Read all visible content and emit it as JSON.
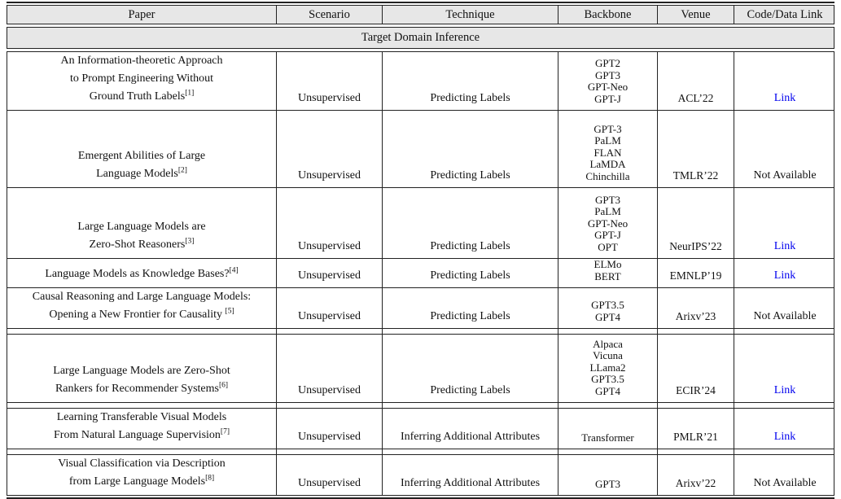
{
  "table": {
    "columns": [
      "Paper",
      "Scenario",
      "Technique",
      "Backbone",
      "Venue",
      "Code/Data Link"
    ],
    "section_title": "Target Domain Inference",
    "rows": [
      {
        "paper_lines": [
          "An Information-theoretic Approach",
          "to Prompt Engineering Without",
          "Ground Truth Labels"
        ],
        "paper_ref": "[1]",
        "scenario": "Unsupervised",
        "technique": "Predicting Labels",
        "backbone_lines": [
          "GPT2",
          "GPT3",
          "GPT-Neo",
          "GPT-J"
        ],
        "venue": "ACL’22",
        "code": "Link"
      },
      {
        "paper_lines": [
          "Emergent Abilities of Large",
          "Language Models"
        ],
        "paper_ref": "[2]",
        "scenario": "Unsupervised",
        "technique": "Predicting Labels",
        "backbone_lines": [
          "GPT-3",
          "PaLM",
          "FLAN",
          "LaMDA",
          "Chinchilla"
        ],
        "venue": "TMLR’22",
        "code": "Not Available"
      },
      {
        "paper_lines": [
          "Large Language Models are",
          "Zero-Shot Reasoners"
        ],
        "paper_ref": "[3]",
        "scenario": "Unsupervised",
        "technique": "Predicting Labels",
        "backbone_lines": [
          "GPT3",
          "PaLM",
          "GPT-Neo",
          "GPT-J",
          "OPT"
        ],
        "venue": "NeurIPS’22",
        "code": "Link"
      },
      {
        "paper_lines": [
          "Language Models as Knowledge Bases?"
        ],
        "paper_ref": "[4]",
        "scenario": "Unsupervised",
        "technique": "Predicting Labels",
        "backbone_lines": [
          "ELMo",
          "BERT"
        ],
        "venue": "EMNLP’19",
        "code": "Link"
      },
      {
        "paper_lines": [
          "Causal Reasoning and Large Language Models:",
          "Opening a New Frontier for Causality "
        ],
        "paper_ref": "[5]",
        "scenario": "Unsupervised",
        "technique": "Predicting Labels",
        "backbone_lines": [
          "GPT3.5",
          "GPT4"
        ],
        "venue": "Arixv’23",
        "code": "Not Available"
      },
      {
        "paper_lines": [
          "Large Language Models are Zero-Shot",
          "Rankers for Recommender Systems"
        ],
        "paper_ref": "[6]",
        "scenario": "Unsupervised",
        "technique": "Predicting Labels",
        "backbone_lines": [
          "Alpaca",
          "Vicuna",
          "LLama2",
          "GPT3.5",
          "GPT4"
        ],
        "venue": "ECIR’24",
        "code": "Link"
      },
      {
        "paper_lines": [
          "Learning Transferable Visual Models",
          "From Natural Language Supervision"
        ],
        "paper_ref": "[7]",
        "scenario": "Unsupervised",
        "technique": "Inferring Additional Attributes",
        "backbone_lines": [
          "Transformer"
        ],
        "venue": "PMLR’21",
        "code": "Link"
      },
      {
        "paper_lines": [
          "Visual Classification via Description",
          "from Large Language Models"
        ],
        "paper_ref": "[8]",
        "scenario": "Unsupervised",
        "technique": "Inferring Additional Attributes",
        "backbone_lines": [
          "GPT3"
        ],
        "venue": "Arixv’22",
        "code": "Not Available"
      }
    ]
  },
  "colors": {
    "link": "#0000EE",
    "band": "#E7E7E7",
    "border": "#222222"
  }
}
